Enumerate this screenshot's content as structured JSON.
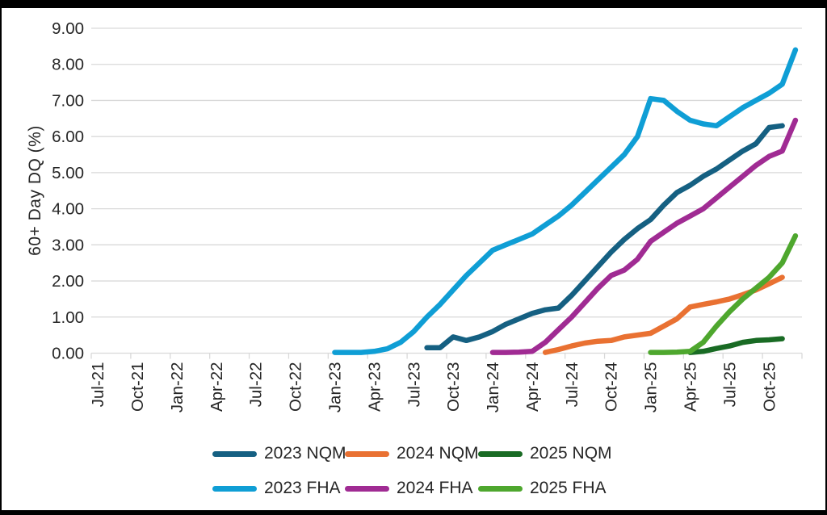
{
  "frame": {
    "border_color": "#000000",
    "panel_color": "#ffffff"
  },
  "chart_data": {
    "type": "line",
    "title": "",
    "xlabel": "",
    "ylabel": "60+ Day DQ (%)",
    "ylim": [
      0,
      9
    ],
    "ytick_labels": [
      "0.00",
      "1.00",
      "2.00",
      "3.00",
      "4.00",
      "5.00",
      "6.00",
      "7.00",
      "8.00",
      "9.00"
    ],
    "grid": "horizontal-only",
    "gridline_color": "#D9D9D9",
    "text_color": "#262626",
    "xtick_every": 3,
    "months": [
      "Jul-21",
      "Aug-21",
      "Sep-21",
      "Oct-21",
      "Nov-21",
      "Dec-21",
      "Jan-22",
      "Feb-22",
      "Mar-22",
      "Apr-22",
      "May-22",
      "Jun-22",
      "Jul-22",
      "Aug-22",
      "Sep-22",
      "Oct-22",
      "Nov-22",
      "Dec-22",
      "Jan-23",
      "Feb-23",
      "Mar-23",
      "Apr-23",
      "May-23",
      "Jun-23",
      "Jul-23",
      "Aug-23",
      "Sep-23",
      "Oct-23",
      "Nov-23",
      "Dec-23",
      "Jan-24",
      "Feb-24",
      "Mar-24",
      "Apr-24",
      "May-24",
      "Jun-24",
      "Jul-24",
      "Aug-24",
      "Sep-24",
      "Oct-24",
      "Nov-24",
      "Dec-24",
      "Jan-25",
      "Feb-25",
      "Mar-25",
      "Apr-25",
      "May-25",
      "Jun-25",
      "Jul-25",
      "Aug-25",
      "Sep-25",
      "Oct-25",
      "Nov-25",
      "Dec-25"
    ],
    "series": [
      {
        "name": "2023 NQM",
        "color": "#156082",
        "start": "Aug-23",
        "values": [
          0.15,
          0.15,
          0.45,
          0.35,
          0.45,
          0.6,
          0.8,
          0.95,
          1.1,
          1.2,
          1.25,
          1.6,
          2.0,
          2.4,
          2.8,
          3.15,
          3.45,
          3.7,
          4.1,
          4.45,
          4.65,
          4.9,
          5.1,
          5.35,
          5.6,
          5.8,
          6.25,
          6.3
        ]
      },
      {
        "name": "2024 NQM",
        "color": "#E97132",
        "start": "May-24",
        "values": [
          0.02,
          0.1,
          0.2,
          0.28,
          0.33,
          0.35,
          0.45,
          0.5,
          0.55,
          0.75,
          0.95,
          1.28,
          1.35,
          1.42,
          1.5,
          1.62,
          1.75,
          1.92,
          2.1
        ]
      },
      {
        "name": "2025 NQM",
        "color": "#196B24",
        "start": "Apr-25",
        "values": [
          0.02,
          0.05,
          0.13,
          0.2,
          0.3,
          0.35,
          0.37,
          0.4
        ]
      },
      {
        "name": "2023 FHA",
        "color": "#0F9ED5",
        "start": "Jan-23",
        "values": [
          0.02,
          0.02,
          0.02,
          0.05,
          0.12,
          0.3,
          0.6,
          1.0,
          1.35,
          1.75,
          2.15,
          2.5,
          2.85,
          3.0,
          3.15,
          3.3,
          3.55,
          3.8,
          4.1,
          4.45,
          4.8,
          5.15,
          5.5,
          6.0,
          7.05,
          7.0,
          6.7,
          6.45,
          6.35,
          6.3,
          6.55,
          6.8,
          7.0,
          7.2,
          7.45,
          8.4
        ]
      },
      {
        "name": "2024 FHA",
        "color": "#A02B93",
        "start": "Jan-24",
        "values": [
          0.02,
          0.02,
          0.03,
          0.05,
          0.3,
          0.65,
          1.0,
          1.4,
          1.8,
          2.15,
          2.3,
          2.6,
          3.1,
          3.35,
          3.6,
          3.8,
          4.0,
          4.3,
          4.6,
          4.9,
          5.2,
          5.45,
          5.6,
          6.45
        ]
      },
      {
        "name": "2025 FHA",
        "color": "#4EA72E",
        "start": "Jan-25",
        "values": [
          0.02,
          0.02,
          0.03,
          0.05,
          0.3,
          0.75,
          1.15,
          1.5,
          1.8,
          2.1,
          2.5,
          3.25
        ]
      }
    ],
    "legend": {
      "position": "bottom",
      "rows": [
        [
          "2023 NQM",
          "2024 NQM",
          "2025 NQM"
        ],
        [
          "2023 FHA",
          "2024 FHA",
          "2025 FHA"
        ]
      ]
    }
  }
}
